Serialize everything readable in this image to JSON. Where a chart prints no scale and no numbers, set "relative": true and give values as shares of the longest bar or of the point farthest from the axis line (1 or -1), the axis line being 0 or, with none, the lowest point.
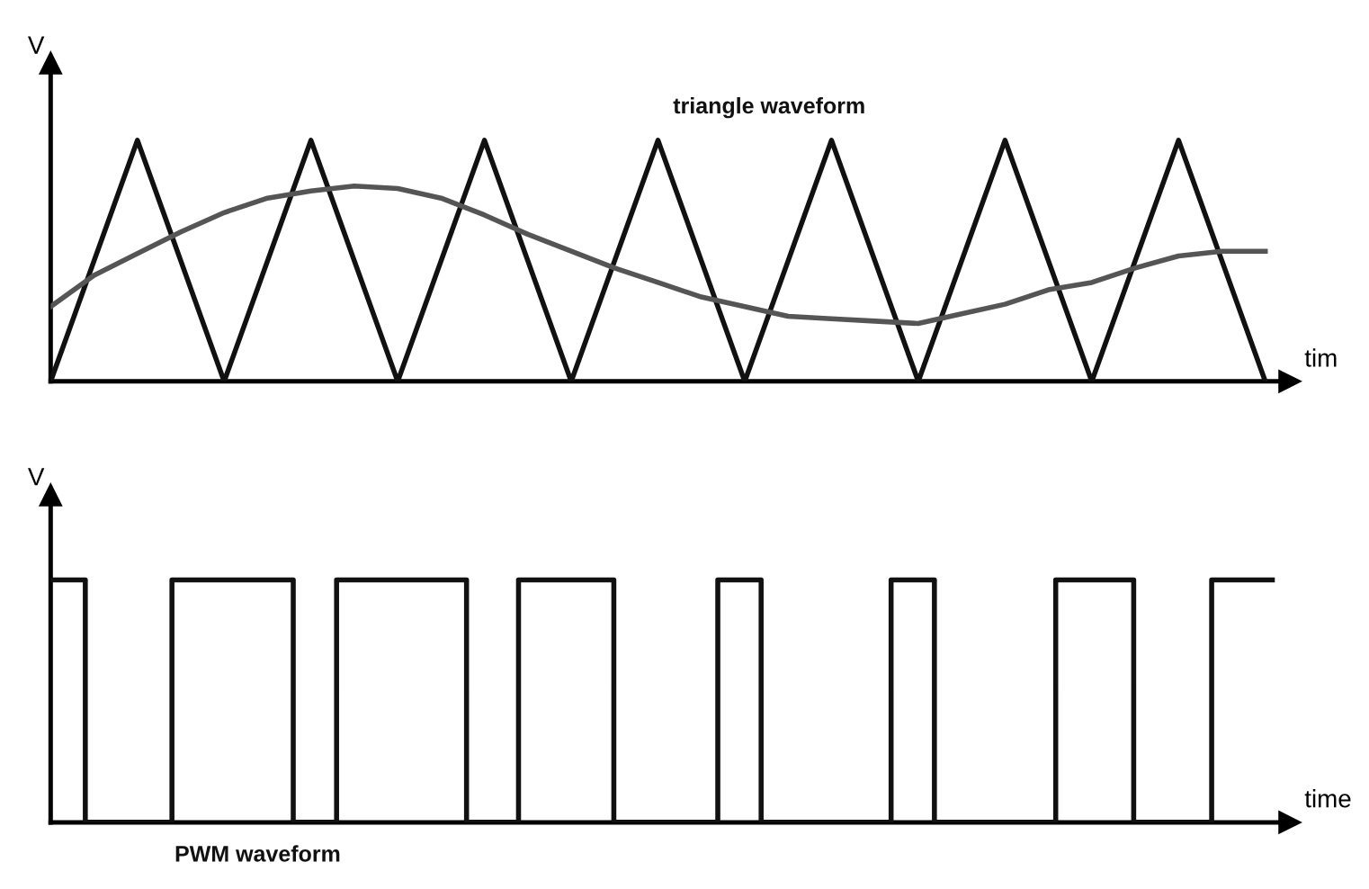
{
  "chart_data": [
    {
      "type": "line",
      "relative": true,
      "ylabel": "V",
      "xlabel": "tim",
      "marker": "none",
      "line_style": "solid",
      "categories": [
        null,
        null,
        null,
        null,
        null,
        null,
        null,
        null,
        null,
        null,
        null,
        null,
        null,
        null,
        null,
        null,
        null,
        null,
        null,
        null,
        null,
        null,
        null,
        null,
        null,
        null,
        null,
        null,
        null
      ],
      "series": [
        {
          "name": "triangle waveform",
          "color": "#111111",
          "values": [
            0,
            0.5,
            1,
            0.5,
            0,
            0.5,
            1,
            0.5,
            0,
            0.5,
            1,
            0.5,
            0,
            0.5,
            1,
            0.5,
            0,
            0.5,
            1,
            0.5,
            0,
            0.5,
            1,
            0.5,
            0,
            0.5,
            1,
            0.5,
            0
          ]
        },
        {
          "color": "#555555",
          "values": [
            0.31,
            0.44,
            0.53,
            0.62,
            0.7,
            0.76,
            0.79,
            0.81,
            0.8,
            0.76,
            0.69,
            0.61,
            0.54,
            0.47,
            0.41,
            0.35,
            0.31,
            0.27,
            0.26,
            0.25,
            0.24,
            0.28,
            0.32,
            0.38,
            0.41,
            0.47,
            0.52,
            0.54,
            0.54
          ]
        }
      ]
    },
    {
      "type": "step",
      "relative": true,
      "ylabel": "V",
      "xlabel": "time",
      "marker": "none",
      "line_style": "solid",
      "categories": [
        null,
        null,
        null,
        null,
        null,
        null,
        null,
        null,
        null,
        null,
        null,
        null,
        null,
        null,
        null,
        null,
        null,
        null,
        null,
        null,
        null,
        null,
        null,
        null,
        null,
        null,
        null,
        null,
        null,
        null,
        null,
        null,
        null,
        null,
        null,
        null,
        null,
        null,
        null,
        null,
        null,
        null,
        null,
        null,
        null,
        null,
        null,
        null,
        null,
        null,
        null,
        null,
        null,
        null,
        null,
        null,
        null,
        null,
        null,
        null,
        null,
        null,
        null,
        null,
        null,
        null,
        null,
        null,
        null,
        null,
        null,
        null,
        null,
        null,
        null,
        null,
        null,
        null,
        null,
        null,
        null,
        null,
        null,
        null,
        null,
        null,
        null,
        null,
        null,
        null,
        null,
        null,
        null,
        null,
        null,
        null,
        null,
        null,
        null,
        null,
        null,
        null,
        null,
        null,
        null,
        null,
        null,
        null,
        null,
        null,
        null,
        null,
        null,
        null,
        null,
        null,
        null,
        null,
        null,
        null,
        null,
        null,
        null,
        null,
        null,
        null,
        null,
        null,
        null,
        null,
        null,
        null,
        null,
        null,
        null,
        null,
        null,
        null,
        null,
        null,
        null,
        null,
        null
      ],
      "series": [
        {
          "name": "PWM waveform",
          "color": "#111111",
          "values": [
            1,
            1,
            1,
            1,
            0,
            0,
            0,
            0,
            0,
            0,
            0,
            0,
            0,
            0,
            1,
            1,
            1,
            1,
            1,
            1,
            1,
            1,
            1,
            1,
            1,
            1,
            1,
            1,
            0,
            0,
            0,
            0,
            0,
            1,
            1,
            1,
            1,
            1,
            1,
            1,
            1,
            1,
            1,
            1,
            1,
            1,
            1,
            1,
            0,
            0,
            0,
            0,
            0,
            0,
            1,
            1,
            1,
            1,
            1,
            1,
            1,
            1,
            1,
            1,
            1,
            0,
            0,
            0,
            0,
            0,
            0,
            0,
            0,
            0,
            0,
            0,
            0,
            1,
            1,
            1,
            1,
            1,
            0,
            0,
            0,
            0,
            0,
            0,
            0,
            0,
            0,
            0,
            0,
            0,
            0,
            0,
            0,
            1,
            1,
            1,
            1,
            1,
            0,
            0,
            0,
            0,
            0,
            0,
            0,
            0,
            0,
            0,
            0,
            0,
            0,
            0,
            1,
            1,
            1,
            1,
            1,
            1,
            1,
            1,
            1,
            0,
            0,
            0,
            0,
            0,
            0,
            0,
            0,
            0,
            1,
            1,
            1,
            1,
            1,
            1,
            1,
            null,
            null
          ]
        }
      ]
    }
  ]
}
